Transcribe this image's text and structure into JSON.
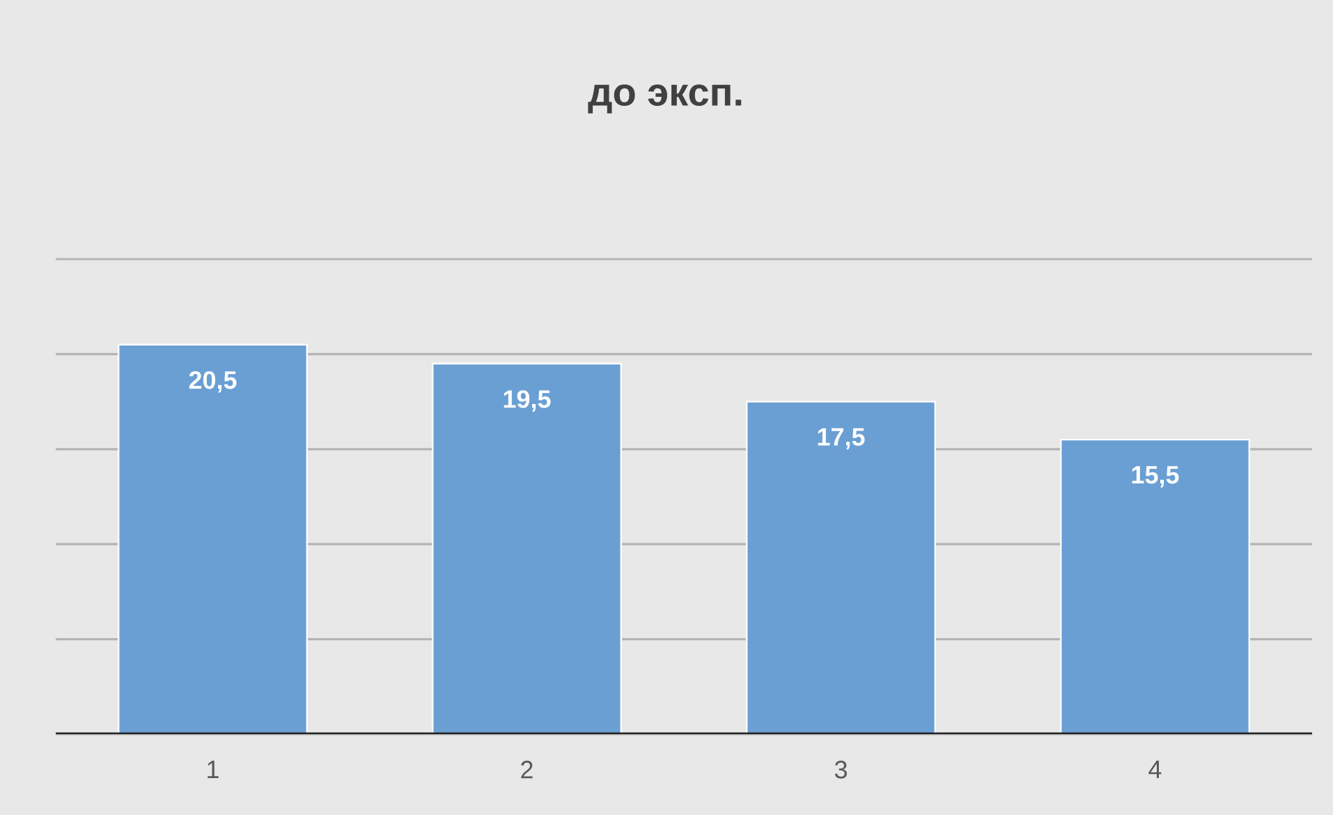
{
  "chart_data": {
    "type": "bar",
    "title": "до эксп.",
    "categories": [
      "1",
      "2",
      "3",
      "4"
    ],
    "values": [
      20.5,
      19.5,
      17.5,
      15.5
    ],
    "value_labels": [
      "20,5",
      "19,5",
      "17,5",
      "15,5"
    ],
    "color": "#6a9fd4",
    "ylim": [
      0,
      25
    ],
    "yticks": [
      {
        "value": 0,
        "label": null
      },
      {
        "value": 5,
        "label": null
      },
      {
        "value": 10,
        "label": null
      },
      {
        "value": 15,
        "label": null
      },
      {
        "value": 20,
        "label": null
      },
      {
        "value": 25,
        "label": null
      }
    ],
    "tick_labels": "x",
    "grid": "y"
  }
}
